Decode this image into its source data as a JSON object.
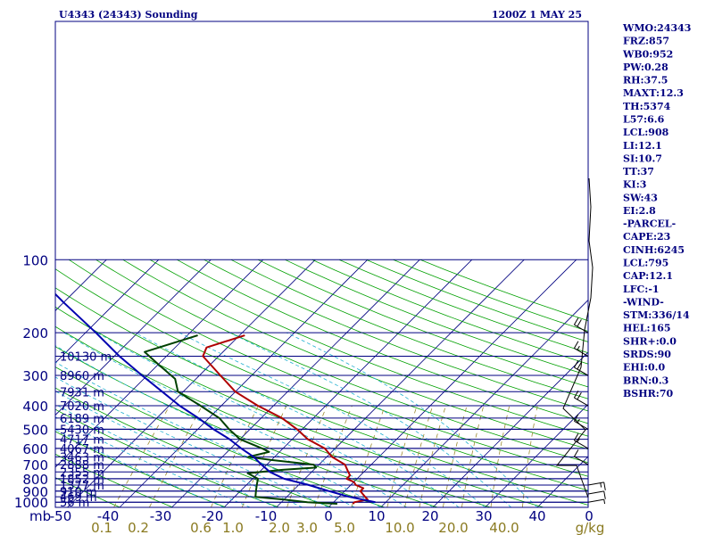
{
  "header": {
    "station": "U4343 (24343) Sounding",
    "time": "1200Z  1 MAY 25"
  },
  "colors": {
    "frame": "#000080",
    "temperature": "#b00000",
    "dewpoint": "#004000",
    "parcel": "#0000b0",
    "dry_adiabat": "#00a000",
    "moist_adiabat": "#20b0d0",
    "mixing_ratio": "#9a8a30",
    "wind": "#000000"
  },
  "axis": {
    "unit_label": "mb",
    "pressure_ticks": [
      {
        "p": 100,
        "label": "100"
      },
      {
        "p": 200,
        "label": "200"
      },
      {
        "p": 300,
        "label": "300"
      },
      {
        "p": 400,
        "label": "400"
      },
      {
        "p": 500,
        "label": "500"
      },
      {
        "p": 600,
        "label": "600"
      },
      {
        "p": 700,
        "label": "700"
      },
      {
        "p": 800,
        "label": "800"
      },
      {
        "p": 900,
        "label": "900"
      },
      {
        "p": 1000,
        "label": "1000"
      }
    ],
    "temp_ticks": [
      "-50",
      "-40",
      "-30",
      "-20",
      "-10",
      "0",
      "10",
      "20",
      "30",
      "40",
      "0"
    ],
    "mixing_ratio_labels": [
      "0.1",
      "0.2",
      "0.6",
      "1.0",
      "2.0",
      "3.0",
      "5.0",
      "10.0",
      "20.0",
      "40.0",
      "g/kg"
    ]
  },
  "height_labels": [
    {
      "p": 250,
      "label": "10130 m"
    },
    {
      "p": 300,
      "label": "8960 m"
    },
    {
      "p": 350,
      "label": "7931 m"
    },
    {
      "p": 400,
      "label": "7020 m"
    },
    {
      "p": 450,
      "label": "6189 m"
    },
    {
      "p": 500,
      "label": "5430 m"
    },
    {
      "p": 550,
      "label": "4717 m"
    },
    {
      "p": 600,
      "label": "4067 m"
    },
    {
      "p": 650,
      "label": "3463 m"
    },
    {
      "p": 700,
      "label": "2888 m"
    },
    {
      "p": 750,
      "label": "2355 m"
    },
    {
      "p": 800,
      "label": "1852 m"
    },
    {
      "p": 850,
      "label": "1377 m"
    },
    {
      "p": 900,
      "label": "910 m"
    },
    {
      "p": 950,
      "label": "469 m"
    },
    {
      "p": 1000,
      "label": "56 m"
    }
  ],
  "indices": [
    "WMO:24343",
    "FRZ:857",
    "WB0:952",
    "PW:0.28",
    "RH:37.5",
    "MAXT:12.3",
    "TH:5374",
    "L57:6.6",
    "LCL:908",
    "LI:12.1",
    "SI:10.7",
    "TT:37",
    "KI:3",
    "SW:43",
    "EI:2.8",
    "-PARCEL-",
    "CAPE:23",
    "CINH:6245",
    "LCL:795",
    "CAP:12.1",
    "LFC:-1",
    "-WIND-",
    "STM:336/14",
    "HEL:165",
    "SHR+:0.0",
    "SRDS:90",
    "EHI:0.0",
    "BRN:0.3",
    "BSHR:70"
  ],
  "chart_data": {
    "type": "line",
    "title": "U4343 (24343) Sounding",
    "xlabel": "",
    "ylabel": "mb",
    "y_scale": "log-pressure",
    "ylim": [
      1050,
      100
    ],
    "xlim": [
      -50,
      50
    ],
    "skew": true,
    "series": [
      {
        "points": [
          [
            1015,
            4
          ],
          [
            1000,
            4
          ],
          [
            975,
            6
          ],
          [
            950,
            5
          ],
          [
            925,
            4
          ],
          [
            900,
            3
          ],
          [
            875,
            3
          ],
          [
            850,
            1
          ],
          [
            825,
            0
          ],
          [
            800,
            -2
          ],
          [
            775,
            -2
          ],
          [
            750,
            -3
          ],
          [
            700,
            -5
          ],
          [
            650,
            -9
          ],
          [
            600,
            -12
          ],
          [
            550,
            -17
          ],
          [
            500,
            -21
          ],
          [
            450,
            -26
          ],
          [
            400,
            -33
          ],
          [
            350,
            -40
          ],
          [
            300,
            -46
          ],
          [
            250,
            -53
          ],
          [
            230,
            -54
          ],
          [
            205,
            -49
          ]
        ]
      },
      {
        "points": [
          [
            1015,
            1
          ],
          [
            1000,
            -5
          ],
          [
            975,
            -10
          ],
          [
            950,
            -16
          ],
          [
            900,
            -17
          ],
          [
            850,
            -18
          ],
          [
            800,
            -19
          ],
          [
            760,
            -22
          ],
          [
            735,
            -16
          ],
          [
            720,
            -10
          ],
          [
            700,
            -11
          ],
          [
            670,
            -20
          ],
          [
            650,
            -25
          ],
          [
            620,
            -22
          ],
          [
            600,
            -24
          ],
          [
            550,
            -30
          ],
          [
            500,
            -34
          ],
          [
            450,
            -38
          ],
          [
            400,
            -44
          ],
          [
            350,
            -51
          ],
          [
            310,
            -54
          ],
          [
            270,
            -60
          ],
          [
            240,
            -65
          ],
          [
            205,
            -58
          ]
        ]
      },
      {
        "points": [
          [
            1000,
            8
          ],
          [
            950,
            2
          ],
          [
            900,
            -3
          ],
          [
            850,
            -8
          ],
          [
            800,
            -14
          ],
          [
            750,
            -18
          ],
          [
            700,
            -21
          ],
          [
            650,
            -24
          ],
          [
            600,
            -28
          ],
          [
            550,
            -32
          ],
          [
            500,
            -37
          ],
          [
            450,
            -42
          ],
          [
            400,
            -48
          ],
          [
            350,
            -54
          ],
          [
            300,
            -61
          ],
          [
            250,
            -69
          ],
          [
            200,
            -78
          ],
          [
            150,
            -90
          ],
          [
            120,
            -99
          ]
        ]
      }
    ],
    "wind_profile": [
      {
        "p": 1000,
        "dir": 80,
        "spd": 5
      },
      {
        "p": 925,
        "dir": 80,
        "spd": 10
      },
      {
        "p": 850,
        "dir": 80,
        "spd": 15
      },
      {
        "p": 700,
        "dir": 300,
        "spd": 10
      },
      {
        "p": 600,
        "dir": 300,
        "spd": 15
      },
      {
        "p": 500,
        "dir": 300,
        "spd": 15
      },
      {
        "p": 400,
        "dir": 300,
        "spd": 20
      },
      {
        "p": 300,
        "dir": 300,
        "spd": 20
      },
      {
        "p": 250,
        "dir": 300,
        "spd": 15
      },
      {
        "p": 200,
        "dir": 300,
        "spd": 20
      }
    ]
  }
}
